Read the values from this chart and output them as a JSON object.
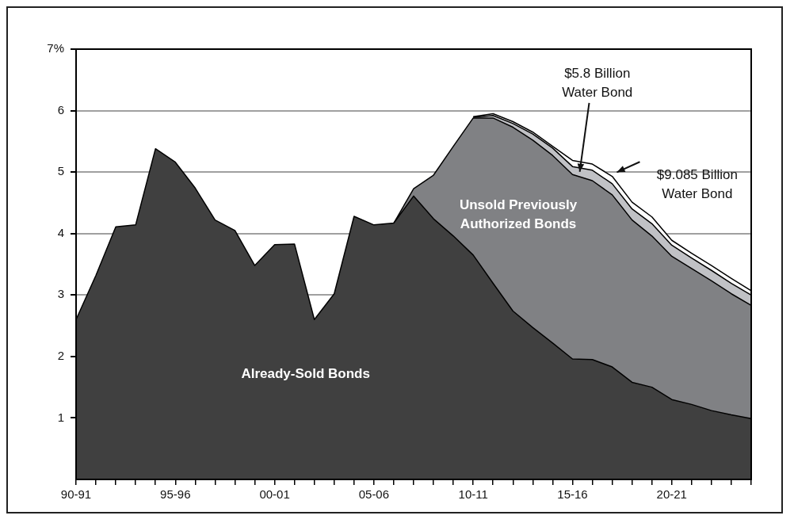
{
  "chart_data": {
    "type": "area",
    "stacked": true,
    "categories": [
      "90-91",
      null,
      null,
      null,
      null,
      "95-96",
      null,
      null,
      null,
      null,
      "00-01",
      null,
      null,
      null,
      null,
      "05-06",
      null,
      null,
      null,
      null,
      "10-11",
      null,
      null,
      null,
      null,
      "15-16",
      null,
      null,
      null,
      null,
      "20-21",
      null,
      null,
      null,
      null
    ],
    "series": [
      {
        "name": "Already-Sold Bonds",
        "color": "#404040",
        "values": [
          2.6,
          3.32,
          4.11,
          4.14,
          5.38,
          5.16,
          4.74,
          4.22,
          4.05,
          3.48,
          3.82,
          3.83,
          2.6,
          3.02,
          4.28,
          4.14,
          4.17,
          4.61,
          4.24,
          3.96,
          3.65,
          3.19,
          2.74,
          2.47,
          2.22,
          1.96,
          1.95,
          1.83,
          1.58,
          1.5,
          1.3,
          1.22,
          1.12,
          1.05,
          0.99
        ]
      },
      {
        "name": "Unsold Previously Authorized Bonds",
        "color": "#808184",
        "values": [
          null,
          null,
          null,
          null,
          null,
          null,
          null,
          null,
          null,
          null,
          null,
          null,
          null,
          null,
          null,
          null,
          0,
          0.12,
          0.71,
          1.46,
          2.23,
          2.69,
          2.99,
          3.05,
          3.05,
          3.0,
          2.91,
          2.8,
          2.64,
          2.46,
          2.33,
          2.21,
          2.11,
          1.97,
          1.84
        ]
      },
      {
        "name": "$5.8 Billion Water Bond",
        "color": "#c0c1c5",
        "values": [
          null,
          null,
          null,
          null,
          null,
          null,
          null,
          null,
          null,
          null,
          null,
          null,
          null,
          null,
          null,
          null,
          null,
          null,
          null,
          null,
          0.01,
          0.04,
          0.06,
          0.1,
          0.12,
          0.13,
          0.17,
          0.18,
          0.18,
          0.2,
          0.18,
          0.17,
          0.17,
          0.17,
          0.17
        ]
      },
      {
        "name": "$9.085 Billion Water Bond",
        "color": "#ffffff",
        "values": [
          null,
          null,
          null,
          null,
          null,
          null,
          null,
          null,
          null,
          null,
          null,
          null,
          null,
          null,
          null,
          null,
          null,
          null,
          null,
          null,
          0.01,
          0.03,
          0.03,
          0.03,
          0.03,
          0.1,
          0.1,
          0.12,
          0.11,
          0.11,
          0.08,
          0.08,
          0.08,
          0.08,
          0.07
        ]
      }
    ],
    "ylim": [
      0,
      7
    ],
    "yticks": [
      1,
      2,
      3,
      4,
      5,
      6,
      {
        "value": 7,
        "label": "7%"
      }
    ],
    "grid": "y",
    "legend": false
  }
}
